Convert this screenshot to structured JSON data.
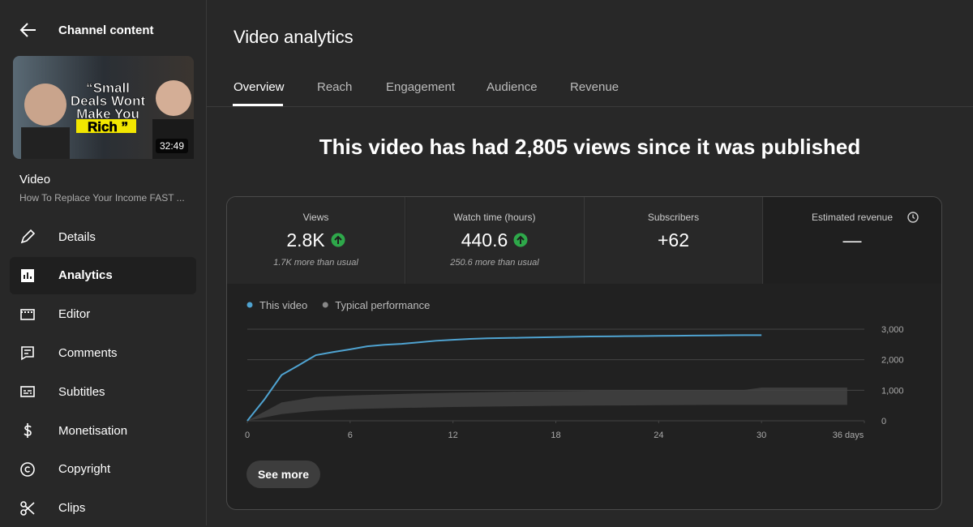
{
  "sidebar": {
    "back": "Channel content",
    "thumbnail": {
      "caption": [
        "“Small",
        "Deals Wont",
        "Make You",
        "Rich ”"
      ],
      "duration": "32:49"
    },
    "video_label": "Video",
    "video_title": "How To Replace Your Income FAST ...",
    "nav": [
      "Details",
      "Analytics",
      "Editor",
      "Comments",
      "Subtitles",
      "Monetisation",
      "Copyright",
      "Clips"
    ],
    "active_nav": "Analytics"
  },
  "header": {
    "title": "Video analytics",
    "tabs": [
      "Overview",
      "Reach",
      "Engagement",
      "Audience",
      "Revenue"
    ],
    "active_tab": "Overview"
  },
  "headline": "This video has had 2,805 views since it was published",
  "metrics": [
    {
      "label": "Views",
      "value": "2.8K",
      "note": "1.7K more than usual"
    },
    {
      "label": "Watch time (hours)",
      "value": "440.6",
      "note": "250.6 more than usual"
    },
    {
      "label": "Subscribers",
      "value": "+62"
    },
    {
      "label": "Estimated revenue",
      "value": "—"
    }
  ],
  "chart_data": {
    "type": "line",
    "series": [
      {
        "name": "This video",
        "color": "#4fa3d1",
        "x": [
          0,
          1,
          2,
          3,
          4,
          5,
          6,
          7,
          8,
          9,
          10,
          11,
          12,
          13,
          14,
          15,
          16,
          17,
          18,
          19,
          20,
          21,
          22,
          23,
          24,
          25,
          26,
          27,
          28,
          29,
          30
        ],
        "values": [
          0,
          700,
          1500,
          1820,
          2150,
          2250,
          2340,
          2440,
          2490,
          2520,
          2570,
          2620,
          2650,
          2680,
          2700,
          2710,
          2720,
          2730,
          2740,
          2750,
          2760,
          2765,
          2770,
          2775,
          2780,
          2785,
          2790,
          2795,
          2800,
          2805,
          2805
        ]
      },
      {
        "name": "Typical performance",
        "color": "#3d3d3d",
        "x": [
          0,
          2,
          4,
          6,
          9,
          12,
          15,
          18,
          21,
          24,
          27,
          29,
          30,
          35
        ],
        "upper": [
          0,
          600,
          780,
          830,
          880,
          920,
          950,
          970,
          990,
          1000,
          1010,
          1010,
          1090,
          1090
        ],
        "lower": [
          0,
          220,
          330,
          380,
          420,
          450,
          470,
          490,
          500,
          510,
          520,
          520,
          520,
          520
        ]
      }
    ],
    "xlim": [
      0,
      36
    ],
    "xticks": [
      0,
      6,
      12,
      18,
      24,
      30,
      {
        "value": 36,
        "label": "36 days"
      }
    ],
    "ylim": [
      0,
      3000
    ],
    "yticks": [
      0,
      {
        "value": 1000,
        "label": "1,000"
      },
      {
        "value": 2000,
        "label": "2,000"
      },
      {
        "value": 3000,
        "label": "3,000"
      }
    ],
    "grid": true
  },
  "button": "See more"
}
